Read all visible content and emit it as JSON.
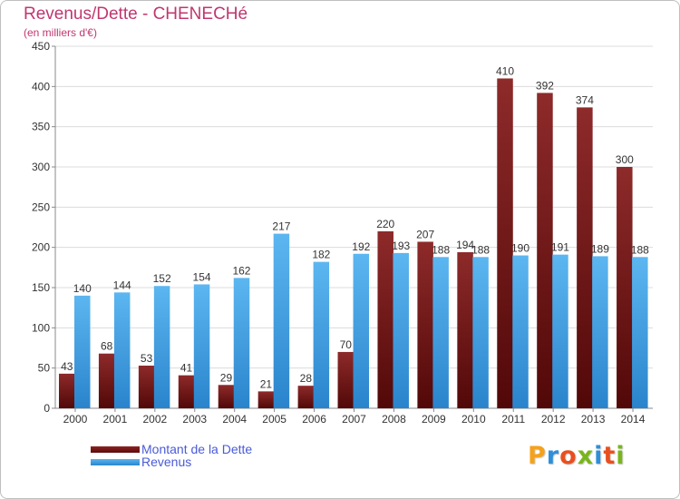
{
  "chart_data": {
    "type": "bar",
    "title": "Revenus/Dette - CHENECHé",
    "subtitle": "(en milliers d'€)",
    "categories": [
      "2000",
      "2001",
      "2002",
      "2003",
      "2004",
      "2005",
      "2006",
      "2007",
      "2008",
      "2009",
      "2010",
      "2011",
      "2012",
      "2013",
      "2014"
    ],
    "series": [
      {
        "name": "Montant de la Dette",
        "color": "#7b1a1a",
        "values": [
          43,
          68,
          53,
          41,
          29,
          21,
          28,
          70,
          220,
          207,
          194,
          410,
          392,
          374,
          300
        ]
      },
      {
        "name": "Revenus",
        "color": "#3a9ae0",
        "values": [
          140,
          144,
          152,
          154,
          162,
          217,
          182,
          192,
          193,
          188,
          188,
          190,
          191,
          189,
          188
        ]
      }
    ],
    "ylim": [
      0,
      450
    ],
    "yticks": [
      0,
      50,
      100,
      150,
      200,
      250,
      300,
      350,
      400,
      450
    ],
    "grid": true,
    "data_labels": true,
    "legend_position": "bottom-left"
  },
  "branding": {
    "logo_text": "Proxiti",
    "logo_colors": [
      "#f4a21c",
      "#2f8fd8",
      "#e8501f",
      "#7ab51d",
      "#2f8fd8",
      "#e8501f",
      "#7ab51d"
    ]
  }
}
